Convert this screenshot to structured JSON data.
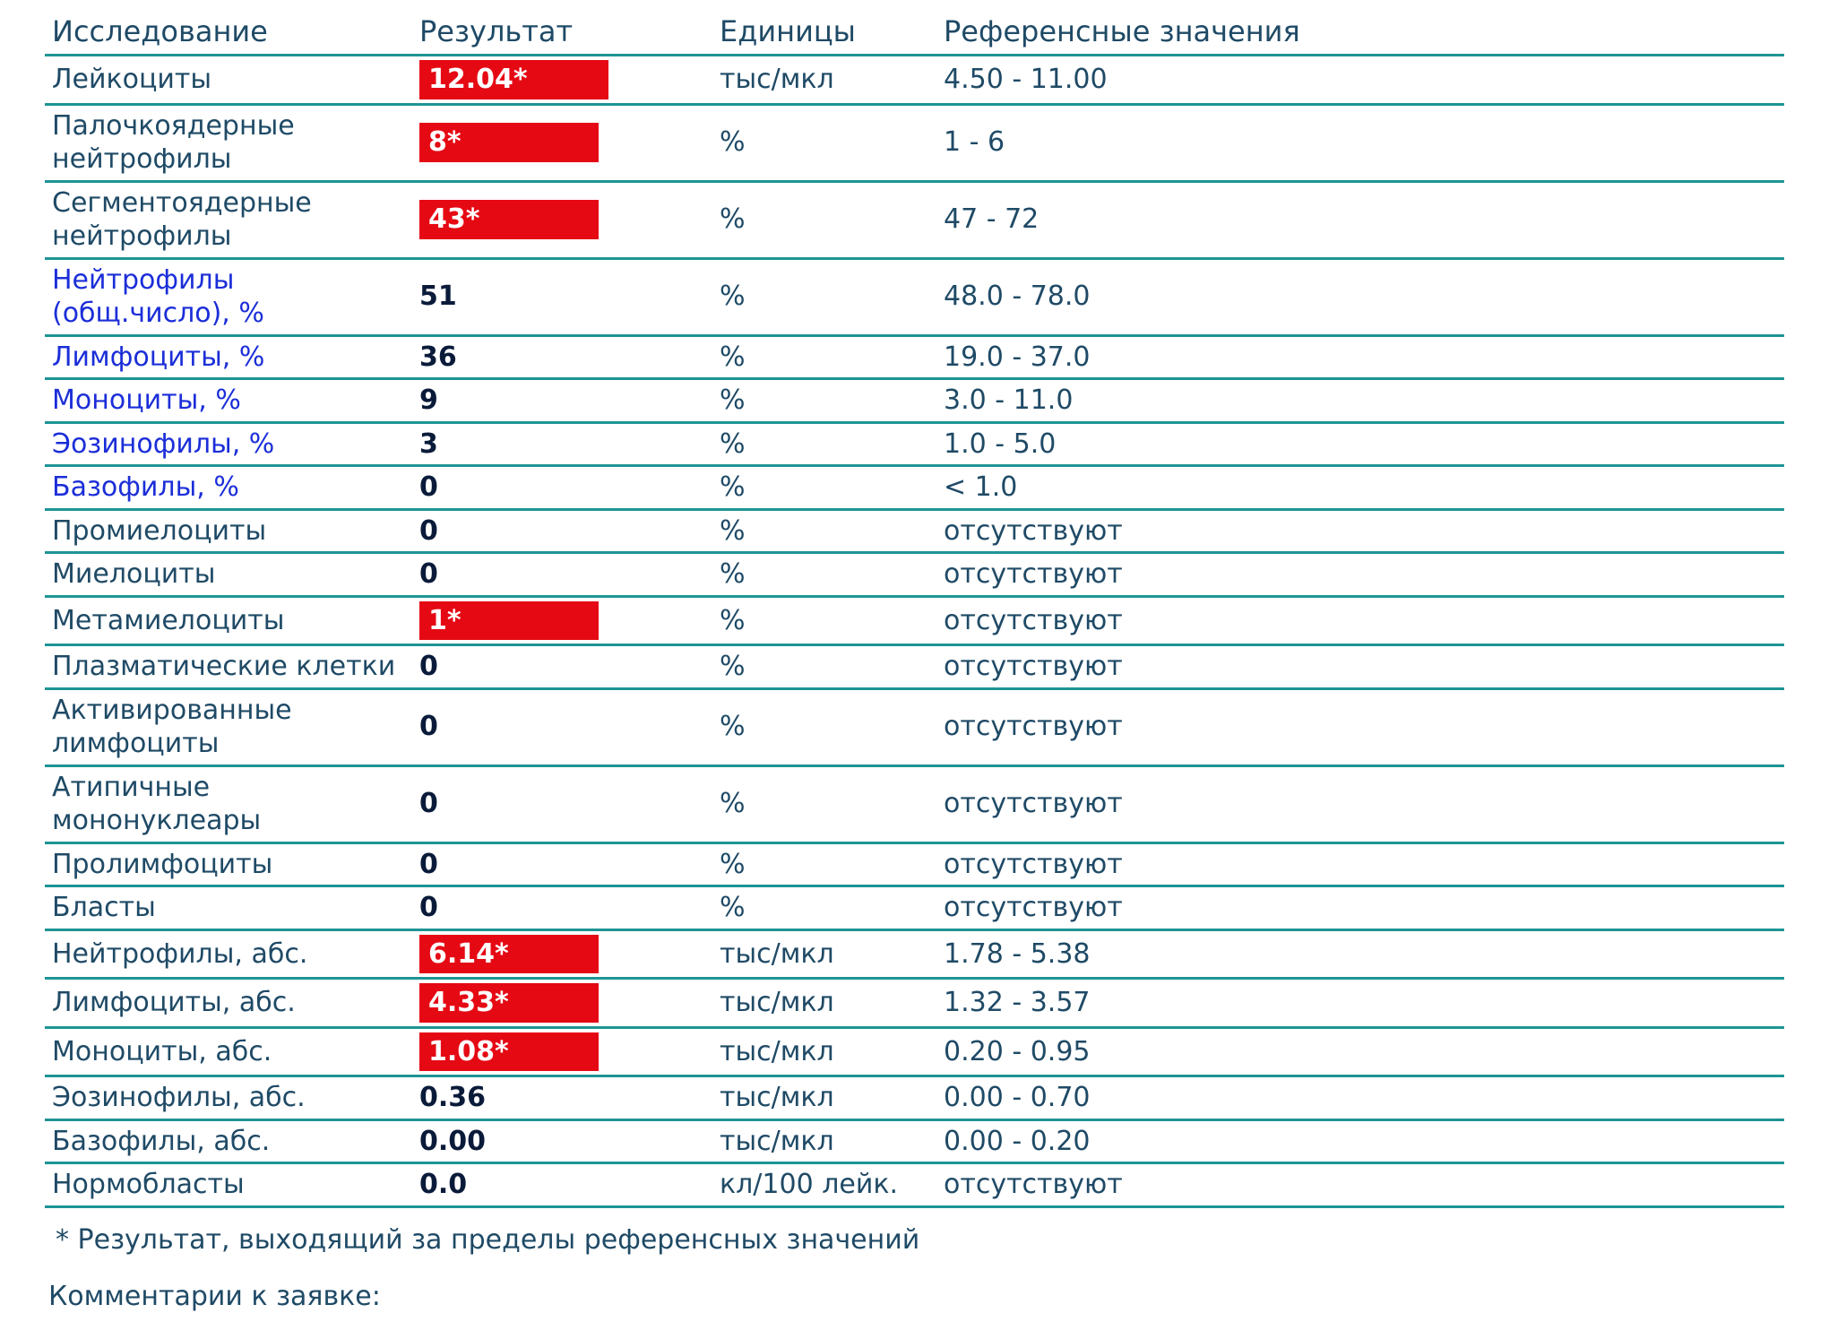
{
  "colors": {
    "divider": "#1e9494",
    "text_blue": "#1f4a66",
    "link_blue": "#1b2ed8",
    "value_dark": "#0a1b3a",
    "flag_bg": "#e50914",
    "flag_fg": "#ffffff",
    "background": "#ffffff"
  },
  "header": {
    "name": "Исследование",
    "result": "Результат",
    "unit": "Единицы",
    "ref": "Референсные значения"
  },
  "rows": [
    {
      "name": "Лейкоциты",
      "name_style": "plain",
      "result": "12.04*",
      "flag": true,
      "unit": "тыс/мкл",
      "ref": "4.50 - 11.00"
    },
    {
      "name": "Палочкоядерные нейтрофилы",
      "name_style": "plain",
      "result": "8*",
      "flag": true,
      "unit": "%",
      "ref": "1 - 6"
    },
    {
      "name": "Сегментоядерные нейтрофилы",
      "name_style": "plain",
      "result": "43*",
      "flag": true,
      "unit": "%",
      "ref": "47 - 72"
    },
    {
      "name": "Нейтрофилы (общ.число), %",
      "name_style": "link",
      "result": "51",
      "flag": false,
      "unit": "%",
      "ref": "48.0 - 78.0"
    },
    {
      "name": "Лимфоциты, %",
      "name_style": "link",
      "result": "36",
      "flag": false,
      "unit": "%",
      "ref": "19.0 - 37.0"
    },
    {
      "name": "Моноциты, %",
      "name_style": "link",
      "result": "9",
      "flag": false,
      "unit": "%",
      "ref": "3.0 - 11.0"
    },
    {
      "name": "Эозинофилы, %",
      "name_style": "link",
      "result": "3",
      "flag": false,
      "unit": "%",
      "ref": "1.0 - 5.0"
    },
    {
      "name": "Базофилы, %",
      "name_style": "link",
      "result": "0",
      "flag": false,
      "unit": "%",
      "ref": "< 1.0"
    },
    {
      "name": "Промиелоциты",
      "name_style": "plain",
      "result": "0",
      "flag": false,
      "unit": "%",
      "ref": "отсутствуют"
    },
    {
      "name": "Миелоциты",
      "name_style": "plain",
      "result": "0",
      "flag": false,
      "unit": "%",
      "ref": "отсутствуют"
    },
    {
      "name": "Метамиелоциты",
      "name_style": "plain",
      "result": "1*",
      "flag": true,
      "unit": "%",
      "ref": "отсутствуют"
    },
    {
      "name": "Плазматические клетки",
      "name_style": "plain",
      "result": "0",
      "flag": false,
      "unit": "%",
      "ref": "отсутствуют"
    },
    {
      "name": "Активированные лимфоциты",
      "name_style": "plain",
      "result": "0",
      "flag": false,
      "unit": "%",
      "ref": "отсутствуют"
    },
    {
      "name": "Атипичные мононуклеары",
      "name_style": "plain",
      "result": "0",
      "flag": false,
      "unit": "%",
      "ref": "отсутствуют"
    },
    {
      "name": "Пролимфоциты",
      "name_style": "plain",
      "result": "0",
      "flag": false,
      "unit": "%",
      "ref": "отсутствуют"
    },
    {
      "name": "Бласты",
      "name_style": "plain",
      "result": "0",
      "flag": false,
      "unit": "%",
      "ref": "отсутствуют"
    },
    {
      "name": "Нейтрофилы, абс.",
      "name_style": "plain",
      "result": "6.14*",
      "flag": true,
      "unit": "тыс/мкл",
      "ref": "1.78 - 5.38"
    },
    {
      "name": "Лимфоциты, абс.",
      "name_style": "plain",
      "result": "4.33*",
      "flag": true,
      "unit": "тыс/мкл",
      "ref": "1.32 - 3.57"
    },
    {
      "name": "Моноциты, абс.",
      "name_style": "plain",
      "result": "1.08*",
      "flag": true,
      "unit": "тыс/мкл",
      "ref": "0.20 - 0.95"
    },
    {
      "name": "Эозинофилы, абс.",
      "name_style": "plain",
      "result": "0.36",
      "flag": false,
      "unit": "тыс/мкл",
      "ref": "0.00 - 0.70"
    },
    {
      "name": "Базофилы, абс.",
      "name_style": "plain",
      "result": "0.00",
      "flag": false,
      "unit": "тыс/мкл",
      "ref": "0.00 - 0.20"
    },
    {
      "name": "Нормобласты",
      "name_style": "plain",
      "result": "0.0",
      "flag": false,
      "unit": "кл/100 лейк.",
      "ref": "отсутствуют"
    }
  ],
  "footnote": "* Результат, выходящий за пределы референсных значений",
  "comments_label": "Комментарии к заявке:"
}
